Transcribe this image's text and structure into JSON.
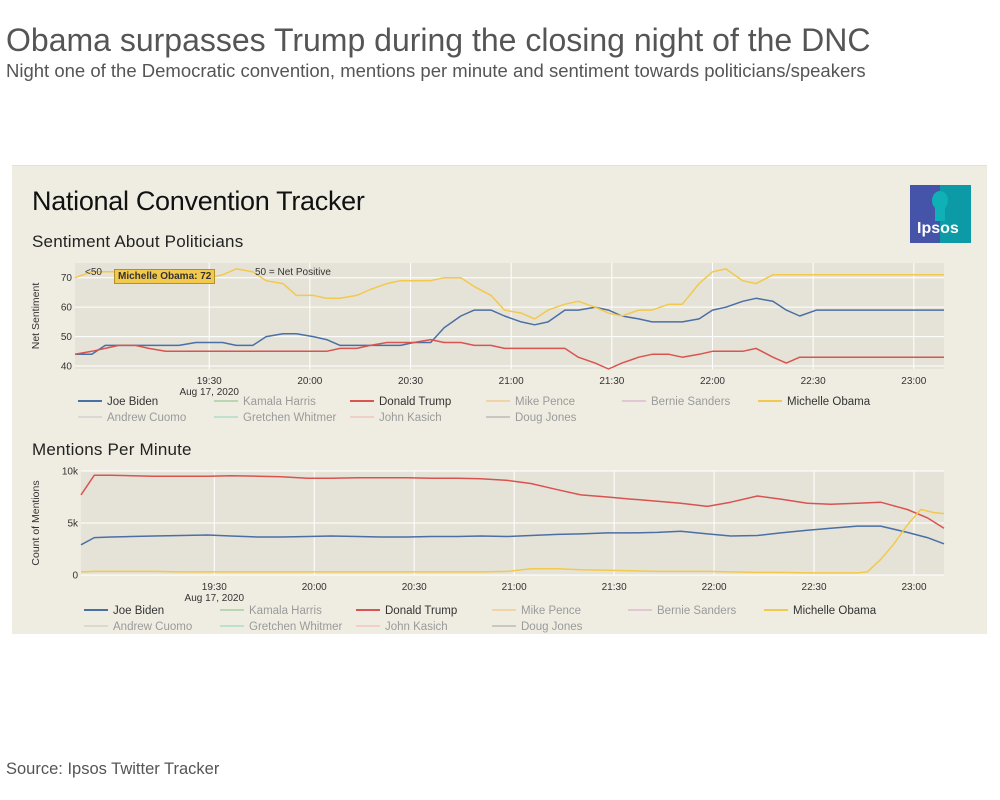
{
  "headline": "Obama surpasses Trump during the closing night of the DNC",
  "subheadline": "Night one of the Democratic convention, mentions per minute and sentiment towards politicians/speakers",
  "source": "Source: Ipsos Twitter Tracker",
  "tracker_title": "National Convention Tracker",
  "logo_text": "Ipsos",
  "colors": {
    "biden": "#4a6fa5",
    "trump": "#d9534f",
    "obama": "#f2c94c",
    "harris": "#8bc58a",
    "pence": "#f4be7a",
    "sanders": "#d7a8c9",
    "cuomo": "#c8c8c8",
    "whitmer": "#96d8bf",
    "kasich": "#f6b6b6",
    "jones": "#aaaaaa"
  },
  "legend": [
    {
      "name": "Joe Biden",
      "color": "#4a6fa5",
      "active": true
    },
    {
      "name": "Kamala Harris",
      "color": "#8bc58a",
      "active": false
    },
    {
      "name": "Donald Trump",
      "color": "#d9534f",
      "active": true
    },
    {
      "name": "Mike Pence",
      "color": "#f4be7a",
      "active": false
    },
    {
      "name": "Bernie Sanders",
      "color": "#d7a8c9",
      "active": false
    },
    {
      "name": "Michelle Obama",
      "color": "#f2c94c",
      "active": true
    },
    {
      "name": "Andrew Cuomo",
      "color": "#c8c8c8",
      "active": false
    },
    {
      "name": "Gretchen Whitmer",
      "color": "#96d8bf",
      "active": false
    },
    {
      "name": "John Kasich",
      "color": "#f6b6b6",
      "active": false
    },
    {
      "name": "Doug Jones",
      "color": "#aaaaaa",
      "active": false
    }
  ],
  "chart_data": [
    {
      "type": "line",
      "title": "Sentiment About Politicians",
      "ylabel": "Net Sentiment",
      "annotation": "<50 = Net Negative, >50 = Net Positive",
      "annotation_visible": "<50",
      "annotation_visible_right": "50 = Net Positive",
      "tooltip": "Michelle Obama: 72",
      "ylim": [
        39,
        75
      ],
      "yticks": [
        40,
        50,
        60,
        70
      ],
      "xlim": [
        1130,
        1389
      ],
      "xticks": [
        {
          "v": 1170,
          "label": "19:30"
        },
        {
          "v": 1200,
          "label": "20:00"
        },
        {
          "v": 1230,
          "label": "20:30"
        },
        {
          "v": 1260,
          "label": "21:00"
        },
        {
          "v": 1290,
          "label": "21:30"
        },
        {
          "v": 1320,
          "label": "22:00"
        },
        {
          "v": 1350,
          "label": "22:30"
        },
        {
          "v": 1380,
          "label": "23:00"
        }
      ],
      "date_label": "Aug 17, 2020",
      "series": [
        {
          "name": "Joe Biden",
          "color": "#4a6fa5",
          "x": [
            1130,
            1135,
            1139,
            1143,
            1148,
            1152,
            1157,
            1161,
            1166,
            1170,
            1174,
            1178,
            1183,
            1187,
            1192,
            1196,
            1201,
            1205,
            1209,
            1214,
            1218,
            1223,
            1227,
            1231,
            1236,
            1240,
            1245,
            1249,
            1254,
            1258,
            1263,
            1267,
            1271,
            1276,
            1280,
            1285,
            1289,
            1293,
            1298,
            1302,
            1307,
            1311,
            1316,
            1320,
            1324,
            1329,
            1333,
            1338,
            1342,
            1346,
            1351,
            1355,
            1360,
            1364,
            1368,
            1373,
            1377,
            1382,
            1386,
            1389
          ],
          "values": [
            44,
            44,
            47,
            47,
            47,
            47,
            47,
            47,
            48,
            48,
            48,
            47,
            47,
            50,
            51,
            51,
            50,
            49,
            47,
            47,
            47,
            47,
            47,
            48,
            48,
            53,
            57,
            59,
            59,
            57,
            55,
            54,
            55,
            59,
            59,
            60,
            59,
            57,
            56,
            55,
            55,
            55,
            56,
            59,
            60,
            62,
            63,
            62,
            59,
            57,
            59,
            59,
            59,
            59,
            59,
            59,
            59,
            59,
            59,
            59
          ]
        },
        {
          "name": "Donald Trump",
          "color": "#d9534f",
          "x": [
            1130,
            1135,
            1139,
            1143,
            1148,
            1152,
            1157,
            1161,
            1166,
            1170,
            1174,
            1178,
            1183,
            1187,
            1192,
            1196,
            1201,
            1205,
            1209,
            1214,
            1218,
            1223,
            1227,
            1231,
            1236,
            1240,
            1245,
            1249,
            1254,
            1258,
            1263,
            1267,
            1271,
            1276,
            1280,
            1285,
            1289,
            1293,
            1298,
            1302,
            1307,
            1311,
            1316,
            1320,
            1324,
            1329,
            1333,
            1338,
            1342,
            1346,
            1351,
            1355,
            1360,
            1364,
            1368,
            1373,
            1377,
            1382,
            1386,
            1389
          ],
          "values": [
            44,
            45,
            46,
            47,
            47,
            46,
            45,
            45,
            45,
            45,
            45,
            45,
            45,
            45,
            45,
            45,
            45,
            45,
            46,
            46,
            47,
            48,
            48,
            48,
            49,
            48,
            48,
            47,
            47,
            46,
            46,
            46,
            46,
            46,
            43,
            41,
            39,
            41,
            43,
            44,
            44,
            43,
            44,
            45,
            45,
            45,
            46,
            43,
            41,
            43,
            43,
            43,
            43,
            43,
            43,
            43,
            43,
            43,
            43,
            43
          ]
        },
        {
          "name": "Michelle Obama",
          "color": "#f2c94c",
          "x": [
            1130,
            1135,
            1139,
            1143,
            1148,
            1152,
            1157,
            1161,
            1166,
            1170,
            1174,
            1178,
            1183,
            1187,
            1192,
            1196,
            1201,
            1205,
            1209,
            1214,
            1218,
            1223,
            1227,
            1231,
            1236,
            1240,
            1245,
            1249,
            1254,
            1258,
            1263,
            1267,
            1271,
            1276,
            1280,
            1285,
            1289,
            1293,
            1298,
            1302,
            1307,
            1311,
            1316,
            1320,
            1324,
            1329,
            1333,
            1338,
            1342,
            1346,
            1351,
            1355,
            1360,
            1364,
            1368,
            1373,
            1377,
            1382,
            1386,
            1389
          ],
          "values": [
            70,
            72,
            72,
            72,
            71,
            71,
            71,
            71,
            71,
            70,
            71,
            73,
            72,
            69,
            68,
            64,
            64,
            63,
            63,
            64,
            66,
            68,
            69,
            69,
            69,
            70,
            70,
            67,
            64,
            59,
            58,
            56,
            59,
            61,
            62,
            60,
            58,
            57,
            59,
            59,
            61,
            61,
            68,
            72,
            73,
            69,
            68,
            71,
            71,
            71,
            71,
            71,
            71,
            71,
            71,
            71,
            71,
            71,
            71,
            71
          ]
        }
      ]
    },
    {
      "type": "line",
      "title": "Mentions Per Minute",
      "ylabel": "Count of Mentions",
      "ylim": [
        0,
        10000
      ],
      "yticks": [
        {
          "v": 0,
          "label": "0"
        },
        {
          "v": 5000,
          "label": "5k"
        },
        {
          "v": 10000,
          "label": "10k"
        }
      ],
      "xlim": [
        1130,
        1389
      ],
      "xticks": [
        {
          "v": 1170,
          "label": "19:30"
        },
        {
          "v": 1200,
          "label": "20:00"
        },
        {
          "v": 1230,
          "label": "20:30"
        },
        {
          "v": 1260,
          "label": "21:00"
        },
        {
          "v": 1290,
          "label": "21:30"
        },
        {
          "v": 1320,
          "label": "22:00"
        },
        {
          "v": 1350,
          "label": "22:30"
        },
        {
          "v": 1380,
          "label": "23:00"
        }
      ],
      "date_label": "Aug 17, 2020",
      "series": [
        {
          "name": "Joe Biden",
          "color": "#4a6fa5",
          "x": [
            1130,
            1134,
            1139,
            1145,
            1152,
            1160,
            1168,
            1175,
            1183,
            1190,
            1198,
            1205,
            1213,
            1220,
            1228,
            1235,
            1243,
            1250,
            1258,
            1265,
            1273,
            1280,
            1288,
            1295,
            1303,
            1310,
            1318,
            1325,
            1333,
            1340,
            1348,
            1355,
            1363,
            1370,
            1378,
            1384,
            1389
          ],
          "values": [
            2900,
            3600,
            3650,
            3700,
            3750,
            3800,
            3850,
            3750,
            3650,
            3650,
            3700,
            3750,
            3700,
            3650,
            3650,
            3700,
            3700,
            3750,
            3700,
            3800,
            3900,
            3950,
            4050,
            4050,
            4100,
            4200,
            3950,
            3750,
            3800,
            4050,
            4300,
            4500,
            4700,
            4700,
            4100,
            3600,
            3000
          ]
        },
        {
          "name": "Donald Trump",
          "color": "#d9534f",
          "x": [
            1130,
            1134,
            1139,
            1145,
            1152,
            1160,
            1168,
            1175,
            1183,
            1190,
            1198,
            1205,
            1213,
            1220,
            1228,
            1235,
            1243,
            1250,
            1258,
            1265,
            1273,
            1280,
            1288,
            1295,
            1303,
            1310,
            1318,
            1325,
            1333,
            1340,
            1348,
            1355,
            1363,
            1370,
            1378,
            1384,
            1389
          ],
          "values": [
            7700,
            9600,
            9600,
            9550,
            9500,
            9500,
            9500,
            9550,
            9500,
            9450,
            9300,
            9300,
            9350,
            9350,
            9350,
            9300,
            9300,
            9250,
            9100,
            8800,
            8200,
            7700,
            7500,
            7300,
            7100,
            6900,
            6600,
            7000,
            7600,
            7300,
            6900,
            6800,
            6900,
            7000,
            6300,
            5500,
            4500
          ]
        },
        {
          "name": "Michelle Obama",
          "color": "#f2c94c",
          "x": [
            1130,
            1134,
            1139,
            1145,
            1152,
            1160,
            1168,
            1175,
            1183,
            1190,
            1198,
            1205,
            1213,
            1220,
            1228,
            1235,
            1243,
            1250,
            1258,
            1265,
            1273,
            1280,
            1288,
            1295,
            1303,
            1310,
            1318,
            1325,
            1333,
            1340,
            1348,
            1355,
            1363,
            1366,
            1370,
            1374,
            1378,
            1382,
            1386,
            1389
          ],
          "values": [
            300,
            350,
            350,
            350,
            350,
            300,
            300,
            300,
            300,
            300,
            300,
            300,
            300,
            300,
            300,
            300,
            300,
            300,
            350,
            600,
            600,
            500,
            450,
            400,
            350,
            350,
            350,
            300,
            250,
            250,
            200,
            200,
            200,
            300,
            1500,
            3000,
            4800,
            6300,
            6000,
            5900
          ]
        }
      ]
    }
  ]
}
